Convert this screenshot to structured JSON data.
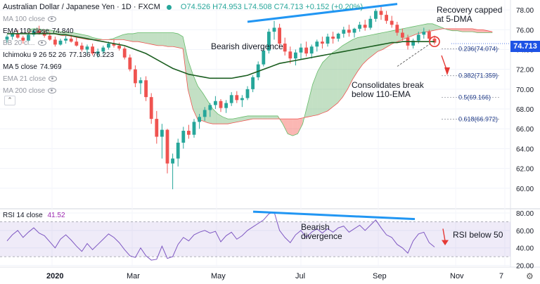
{
  "legend": {
    "symbol": "Australian Dollar / Japanese Yen · 1D · FXCM",
    "ohlc": "O74.526 H74.953 L74.508 C74.713 +0.152 (+0.20%)"
  },
  "indicators": [
    {
      "label": "MA 100 close",
      "value": "",
      "muted": true
    },
    {
      "label": "EMA 110 close",
      "value": "74.840",
      "muted": false
    },
    {
      "label": "BB 20 cl...",
      "value": "",
      "muted": true
    },
    {
      "label": "Ichimoku 9 26 52 26",
      "value": "77.136  76.223",
      "muted": false
    },
    {
      "label": "MA 5 close",
      "value": "74.969",
      "muted": false
    },
    {
      "label": "EMA 21 close",
      "value": "",
      "muted": true
    },
    {
      "label": "MA 200 close",
      "value": "",
      "muted": true
    }
  ],
  "collapse_glyph": "⌃",
  "annotations": {
    "bearish_top": "Bearish divergence",
    "recovery": "Recovery capped at 5-DMA",
    "consolidates": "Consolidates break below 110-EMA",
    "bearish_rsi": "Bearish divergence",
    "rsi_below": "RSI below 50"
  },
  "last_price": "74.713",
  "rsi_legend": {
    "label": "RSI 14 close",
    "value": "41.52"
  },
  "gear_glyph": "⚙",
  "chart_data": {
    "type": "candlestick",
    "price_axis": {
      "min": 58,
      "max": 79,
      "ticks": [
        60,
        62,
        64,
        66,
        68,
        70,
        72,
        74,
        76,
        78
      ]
    },
    "rsi_axis": {
      "min": 18,
      "max": 84,
      "ticks": [
        20,
        40,
        60,
        80
      ],
      "bands": [
        30,
        70
      ]
    },
    "x_labels": [
      "2020",
      "Mar",
      "May",
      "Jul",
      "Sep",
      "Nov",
      "7"
    ],
    "fib_levels": [
      {
        "label": "0.236(74.074)",
        "value": 74.074
      },
      {
        "label": "0.382(71.359)",
        "value": 71.359
      },
      {
        "label": "0.5(69.166)",
        "value": 69.166
      },
      {
        "label": "0.618(66.972)",
        "value": 66.972
      }
    ],
    "candles": [
      [
        75.0,
        75.5,
        74.7,
        75.3
      ],
      [
        75.3,
        75.8,
        75.0,
        75.6
      ],
      [
        75.6,
        76.0,
        75.1,
        75.2
      ],
      [
        75.2,
        75.4,
        74.6,
        74.9
      ],
      [
        74.9,
        75.6,
        74.8,
        75.5
      ],
      [
        75.5,
        76.1,
        75.3,
        75.9
      ],
      [
        75.9,
        76.4,
        75.5,
        75.7
      ],
      [
        75.7,
        76.0,
        75.2,
        75.4
      ],
      [
        75.4,
        75.8,
        74.9,
        75.0
      ],
      [
        75.0,
        75.3,
        74.3,
        74.5
      ],
      [
        74.5,
        75.1,
        74.4,
        74.9
      ],
      [
        74.9,
        75.4,
        74.6,
        75.1
      ],
      [
        75.1,
        75.5,
        74.7,
        74.8
      ],
      [
        74.8,
        75.2,
        74.3,
        74.4
      ],
      [
        74.4,
        74.7,
        73.8,
        74.0
      ],
      [
        74.0,
        74.5,
        73.6,
        74.3
      ],
      [
        74.3,
        74.6,
        73.4,
        73.6
      ],
      [
        73.6,
        74.1,
        73.2,
        73.8
      ],
      [
        73.8,
        74.4,
        73.5,
        74.2
      ],
      [
        74.2,
        74.8,
        74.0,
        74.6
      ],
      [
        74.6,
        75.0,
        74.2,
        74.4
      ],
      [
        74.4,
        74.7,
        73.9,
        74.1
      ],
      [
        74.1,
        74.3,
        73.0,
        73.2
      ],
      [
        73.2,
        73.5,
        71.8,
        72.0
      ],
      [
        72.0,
        72.4,
        70.2,
        70.6
      ],
      [
        70.6,
        71.2,
        69.5,
        70.9
      ],
      [
        70.9,
        71.3,
        68.8,
        69.2
      ],
      [
        69.2,
        69.6,
        66.5,
        67.0
      ],
      [
        67.0,
        67.8,
        64.5,
        65.2
      ],
      [
        65.2,
        66.5,
        63.0,
        65.9
      ],
      [
        65.9,
        66.0,
        61.5,
        62.5
      ],
      [
        62.5,
        63.5,
        59.9,
        63.0
      ],
      [
        63.0,
        65.0,
        62.2,
        64.6
      ],
      [
        64.6,
        66.2,
        64.0,
        65.8
      ],
      [
        65.8,
        66.4,
        65.0,
        65.4
      ],
      [
        65.4,
        67.0,
        65.1,
        66.7
      ],
      [
        66.7,
        67.5,
        66.0,
        67.2
      ],
      [
        67.2,
        68.2,
        66.8,
        67.9
      ],
      [
        67.9,
        68.6,
        67.2,
        68.4
      ],
      [
        68.4,
        69.3,
        68.0,
        68.8
      ],
      [
        68.8,
        69.0,
        67.7,
        68.1
      ],
      [
        68.1,
        68.9,
        67.6,
        68.6
      ],
      [
        68.6,
        69.7,
        68.3,
        69.4
      ],
      [
        69.4,
        69.8,
        68.6,
        68.9
      ],
      [
        68.9,
        69.4,
        68.2,
        69.1
      ],
      [
        69.1,
        70.3,
        68.9,
        70.0
      ],
      [
        70.0,
        71.4,
        69.7,
        71.2
      ],
      [
        71.2,
        72.8,
        70.9,
        72.5
      ],
      [
        72.5,
        74.2,
        72.3,
        73.9
      ],
      [
        73.9,
        76.1,
        73.6,
        75.8
      ],
      [
        75.8,
        76.9,
        75.0,
        76.2
      ],
      [
        76.2,
        76.6,
        74.2,
        74.6
      ],
      [
        74.6,
        75.2,
        73.4,
        73.8
      ],
      [
        73.8,
        74.3,
        72.6,
        73.1
      ],
      [
        73.1,
        74.0,
        72.4,
        73.7
      ],
      [
        73.7,
        74.6,
        73.0,
        74.2
      ],
      [
        74.2,
        74.8,
        73.3,
        73.6
      ],
      [
        73.6,
        74.5,
        73.1,
        74.3
      ],
      [
        74.3,
        75.0,
        73.8,
        74.8
      ],
      [
        74.8,
        75.3,
        74.1,
        74.6
      ],
      [
        74.6,
        75.6,
        74.3,
        75.3
      ],
      [
        75.3,
        75.8,
        74.6,
        75.1
      ],
      [
        75.1,
        75.7,
        74.8,
        75.6
      ],
      [
        75.6,
        76.3,
        75.2,
        76.0
      ],
      [
        76.0,
        76.5,
        75.3,
        75.7
      ],
      [
        75.7,
        76.2,
        75.2,
        76.1
      ],
      [
        76.1,
        76.8,
        75.8,
        76.5
      ],
      [
        76.5,
        77.0,
        75.9,
        76.2
      ],
      [
        76.2,
        77.4,
        76.0,
        77.1
      ],
      [
        77.1,
        78.1,
        76.8,
        77.9
      ],
      [
        77.9,
        78.3,
        77.0,
        77.5
      ],
      [
        77.5,
        77.9,
        76.6,
        76.9
      ],
      [
        76.9,
        77.4,
        76.2,
        76.5
      ],
      [
        76.5,
        76.8,
        75.4,
        75.7
      ],
      [
        75.7,
        76.1,
        74.9,
        75.2
      ],
      [
        75.2,
        75.5,
        74.0,
        74.4
      ],
      [
        74.4,
        75.1,
        74.1,
        74.9
      ],
      [
        74.9,
        75.8,
        74.6,
        75.5
      ],
      [
        75.5,
        76.2,
        75.1,
        75.8
      ],
      [
        75.8,
        76.0,
        74.9,
        75.1
      ],
      [
        75.1,
        75.4,
        74.5,
        74.7
      ]
    ],
    "ema110": [
      75.6,
      75.6,
      75.6,
      75.6,
      75.6,
      75.6,
      75.6,
      75.6,
      75.6,
      75.6,
      75.5,
      75.5,
      75.4,
      75.3,
      75.2,
      75.1,
      75.0,
      74.9,
      74.8,
      74.7,
      74.6,
      74.5,
      74.4,
      74.2,
      74.0,
      73.8,
      73.6,
      73.3,
      73.0,
      72.7,
      72.4,
      72.1,
      71.9,
      71.7,
      71.5,
      71.4,
      71.3,
      71.2,
      71.1,
      71.1,
      71.1,
      71.1,
      71.1,
      71.2,
      71.3,
      71.4,
      71.6,
      71.8,
      72.0,
      72.2,
      72.4,
      72.6,
      72.7,
      72.8,
      72.9,
      73.0,
      73.1,
      73.2,
      73.3,
      73.4,
      73.5,
      73.6,
      73.7,
      73.8,
      73.9,
      74.0,
      74.1,
      74.2,
      74.3,
      74.4,
      74.5,
      74.6,
      74.7,
      74.7,
      74.8,
      74.8,
      74.8,
      74.8,
      74.8,
      74.8,
      74.8
    ],
    "cloud": [
      [
        76.0,
        75.8
      ],
      [
        76.1,
        75.8
      ],
      [
        76.1,
        75.7
      ],
      [
        76.0,
        75.6
      ],
      [
        76.0,
        75.6
      ],
      [
        75.9,
        75.6
      ],
      [
        75.8,
        75.5
      ],
      [
        75.8,
        75.4
      ],
      [
        75.7,
        75.4
      ],
      [
        75.7,
        75.3
      ],
      [
        75.6,
        75.2
      ],
      [
        75.5,
        75.1
      ],
      [
        75.4,
        75.0
      ],
      [
        75.2,
        75.0
      ],
      [
        75.1,
        75.0
      ],
      [
        75.0,
        75.0
      ],
      [
        75.0,
        75.0
      ],
      [
        75.1,
        75.0
      ],
      [
        75.3,
        75.0
      ],
      [
        75.5,
        75.0
      ],
      [
        75.6,
        74.9
      ],
      [
        75.6,
        74.8
      ],
      [
        75.7,
        74.8
      ],
      [
        75.7,
        74.7
      ],
      [
        75.7,
        74.6
      ],
      [
        75.7,
        74.5
      ],
      [
        75.7,
        74.4
      ],
      [
        75.7,
        74.4
      ],
      [
        75.7,
        74.3
      ],
      [
        75.7,
        74.3
      ],
      [
        75.6,
        74.2
      ],
      [
        75.3,
        74.1
      ],
      [
        73.0,
        70.0
      ],
      [
        71.5,
        68.0
      ],
      [
        70.3,
        66.9
      ],
      [
        69.6,
        66.8
      ],
      [
        68.8,
        66.6
      ],
      [
        68.0,
        66.5
      ],
      [
        67.5,
        66.5
      ],
      [
        67.2,
        66.5
      ],
      [
        67.0,
        66.5
      ],
      [
        67.0,
        66.6
      ],
      [
        67.1,
        66.7
      ],
      [
        67.2,
        66.8
      ],
      [
        67.3,
        66.9
      ],
      [
        67.3,
        67.0
      ],
      [
        67.3,
        67.0
      ],
      [
        67.3,
        67.0
      ],
      [
        67.3,
        67.0
      ],
      [
        67.3,
        67.0
      ],
      [
        67.3,
        67.0
      ],
      [
        66.5,
        67.0
      ],
      [
        65.5,
        67.0
      ],
      [
        65.3,
        67.0
      ],
      [
        65.5,
        67.0
      ],
      [
        66.5,
        67.1
      ],
      [
        68.5,
        67.2
      ],
      [
        70.5,
        67.3
      ],
      [
        71.8,
        67.4
      ],
      [
        72.7,
        67.6
      ],
      [
        73.2,
        67.8
      ],
      [
        73.7,
        68.2
      ],
      [
        74.0,
        68.6
      ],
      [
        74.4,
        69.2
      ],
      [
        74.7,
        70.0
      ],
      [
        75.0,
        71.0
      ],
      [
        75.2,
        71.8
      ],
      [
        75.3,
        72.5
      ],
      [
        75.4,
        73.0
      ],
      [
        75.5,
        73.4
      ],
      [
        75.6,
        73.8
      ],
      [
        75.7,
        74.0
      ],
      [
        75.8,
        74.3
      ],
      [
        75.9,
        74.6
      ],
      [
        76.0,
        74.8
      ],
      [
        76.1,
        75.0
      ],
      [
        76.2,
        75.2
      ],
      [
        76.3,
        75.4
      ],
      [
        76.4,
        75.6
      ],
      [
        76.5,
        75.7
      ],
      [
        76.6,
        75.8
      ],
      [
        76.6,
        75.9
      ],
      [
        76.4,
        76.0
      ],
      [
        76.2,
        76.1
      ],
      [
        76.0,
        76.1
      ],
      [
        75.9,
        76.1
      ],
      [
        75.9,
        76.1
      ],
      [
        75.8,
        76.1
      ],
      [
        75.8,
        76.1
      ],
      [
        75.8,
        76.1
      ],
      [
        75.7,
        76.0
      ],
      [
        75.7,
        76.0
      ],
      [
        75.7,
        75.9
      ],
      [
        75.7,
        75.8
      ]
    ],
    "rsi": [
      48,
      55,
      60,
      52,
      58,
      63,
      57,
      54,
      47,
      40,
      50,
      55,
      49,
      42,
      36,
      45,
      38,
      44,
      50,
      56,
      52,
      46,
      38,
      31,
      29,
      40,
      31,
      26,
      27,
      42,
      28,
      30,
      44,
      52,
      48,
      55,
      58,
      60,
      57,
      59,
      47,
      54,
      58,
      50,
      54,
      60,
      64,
      68,
      72,
      79,
      81,
      60,
      52,
      46,
      55,
      60,
      52,
      58,
      62,
      57,
      62,
      58,
      63,
      65,
      58,
      62,
      66,
      60,
      66,
      72,
      63,
      55,
      52,
      44,
      40,
      34,
      48,
      56,
      58,
      46,
      41
    ]
  }
}
